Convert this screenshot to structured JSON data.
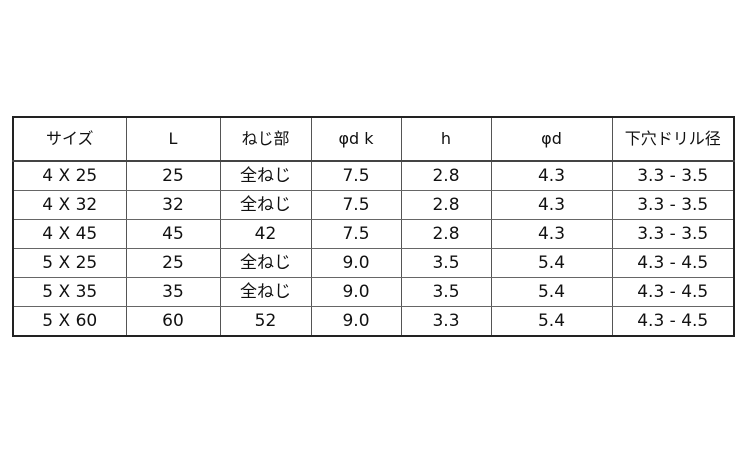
{
  "table": {
    "headers": [
      "サイズ",
      "L",
      "ねじ部",
      "φd k",
      "h",
      "φd",
      "下穴ドリル径"
    ],
    "rows": [
      [
        "4 X 25",
        "25",
        "全ねじ",
        "7.5",
        "2.8",
        "4.3",
        "3.3 - 3.5"
      ],
      [
        "4 X 32",
        "32",
        "全ねじ",
        "7.5",
        "2.8",
        "4.3",
        "3.3 - 3.5"
      ],
      [
        "4 X 45",
        "45",
        "42",
        "7.5",
        "2.8",
        "4.3",
        "3.3 - 3.5"
      ],
      [
        "5 X 25",
        "25",
        "全ねじ",
        "9.0",
        "3.5",
        "5.4",
        "4.3 - 4.5"
      ],
      [
        "5 X 35",
        "35",
        "全ねじ",
        "9.0",
        "3.5",
        "5.4",
        "4.3 - 4.5"
      ],
      [
        "5 X 60",
        "60",
        "52",
        "9.0",
        "3.3",
        "5.4",
        "4.3 - 4.5"
      ]
    ]
  }
}
